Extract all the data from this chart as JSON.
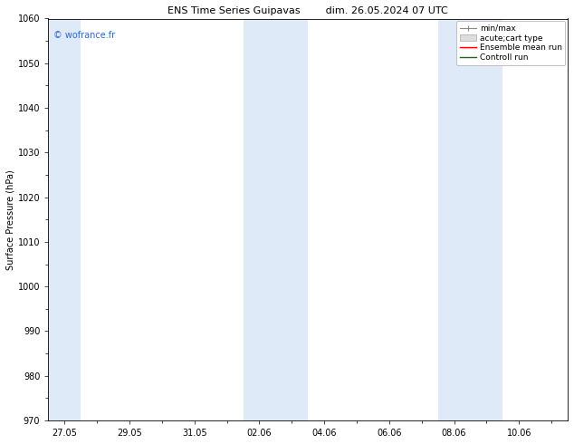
{
  "title_left": "ENS Time Series Guipavas",
  "title_right": "dim. 26.05.2024 07 UTC",
  "ylabel": "Surface Pressure (hPa)",
  "ylim": [
    970,
    1060
  ],
  "yticks": [
    970,
    980,
    990,
    1000,
    1010,
    1020,
    1030,
    1040,
    1050,
    1060
  ],
  "xtick_labels": [
    "27.05",
    "29.05",
    "31.05",
    "02.06",
    "04.06",
    "06.06",
    "08.06",
    "10.06"
  ],
  "xtick_positions": [
    0,
    2,
    4,
    6,
    8,
    10,
    12,
    14
  ],
  "xmin": -0.5,
  "xmax": 15.5,
  "shaded_bands": [
    {
      "x_start": -0.5,
      "x_end": 0.5
    },
    {
      "x_start": 5.5,
      "x_end": 7.5
    },
    {
      "x_start": 11.5,
      "x_end": 13.5
    }
  ],
  "shade_color": "#deeaf7",
  "background_color": "#ffffff",
  "watermark_text": "© wofrance.fr",
  "watermark_color": "#3366cc",
  "watermark_fontsize": 7,
  "title_fontsize": 8,
  "legend_labels": [
    "min/max",
    "acute;cart type",
    "Ensemble mean run",
    "Controll run"
  ],
  "legend_colors": [
    "#aaaaaa",
    "#cccccc",
    "#ff0000",
    "#008000"
  ],
  "grid_color": "#cccccc",
  "tick_label_fontsize": 7,
  "ylabel_fontsize": 7
}
